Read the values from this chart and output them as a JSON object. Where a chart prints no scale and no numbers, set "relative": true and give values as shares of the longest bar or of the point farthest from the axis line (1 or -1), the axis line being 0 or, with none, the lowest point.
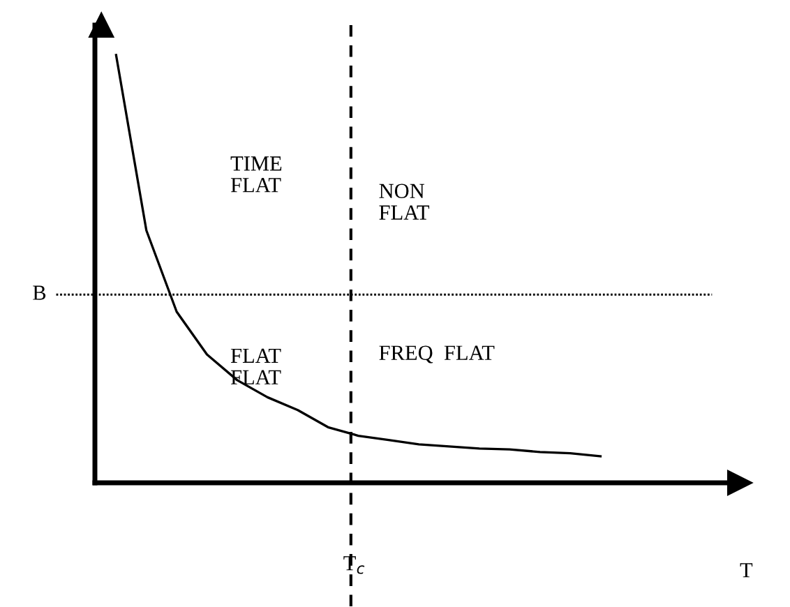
{
  "chart_data": {
    "type": "line",
    "relative": true,
    "marker": "none",
    "line_style": "solid",
    "categories": [
      null,
      null,
      null,
      null,
      null,
      null,
      null,
      null,
      null,
      null,
      null,
      null,
      null,
      null,
      null,
      null,
      null
    ],
    "series": [
      {
        "color": "#000000",
        "values": [
          1,
          0.59,
          0.4,
          0.3,
          0.24,
          0.2,
          0.17,
          0.13,
          0.11,
          0.1,
          0.09,
          0.085,
          0.08,
          0.078,
          0.072,
          0.069,
          0.062
        ]
      }
    ],
    "ref_lines": [
      {
        "axis": "y",
        "value": 0.44,
        "label": "B",
        "line_style": "dotted",
        "color": "#000000"
      }
    ],
    "annotations": [
      "TIME\nFLAT",
      "NON\nFLAT",
      "FLAT\nFLAT",
      "FREQ  FLAT",
      "T$_{c}$",
      "T"
    ]
  }
}
